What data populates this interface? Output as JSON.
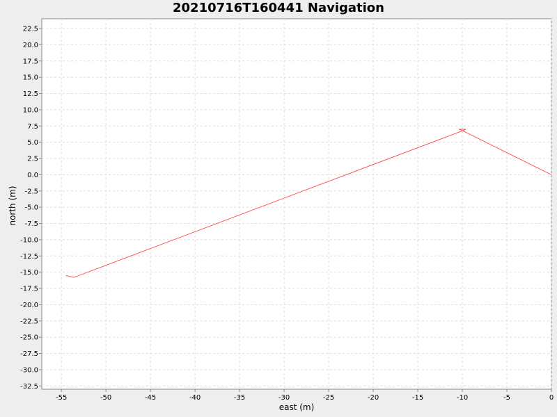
{
  "chart_data": {
    "type": "line",
    "title": "20210716T160441 Navigation",
    "xlabel": "east (m)",
    "ylabel": "north (m)",
    "xlim": [
      -57.2,
      0
    ],
    "ylim": [
      -33,
      24
    ],
    "xticks": [
      -55,
      -50,
      -45,
      -40,
      -35,
      -30,
      -25,
      -20,
      -15,
      -10,
      -5,
      0
    ],
    "yticks": [
      22.5,
      20.0,
      17.5,
      15.0,
      12.5,
      10.0,
      7.5,
      5.0,
      2.5,
      0.0,
      -2.5,
      -5.0,
      -7.5,
      -10.0,
      -12.5,
      -15.0,
      -17.5,
      -20.0,
      -22.5,
      -25.0,
      -27.5,
      -30.0,
      -32.5
    ],
    "grid": true,
    "series": [
      {
        "color": "#ff5555",
        "x": [
          0,
          -10.0,
          -10.4,
          -9.6,
          -9.9,
          -53.6,
          -54.5
        ],
        "y": [
          0,
          6.8,
          7.0,
          7.0,
          6.8,
          -15.8,
          -15.5
        ]
      }
    ]
  }
}
